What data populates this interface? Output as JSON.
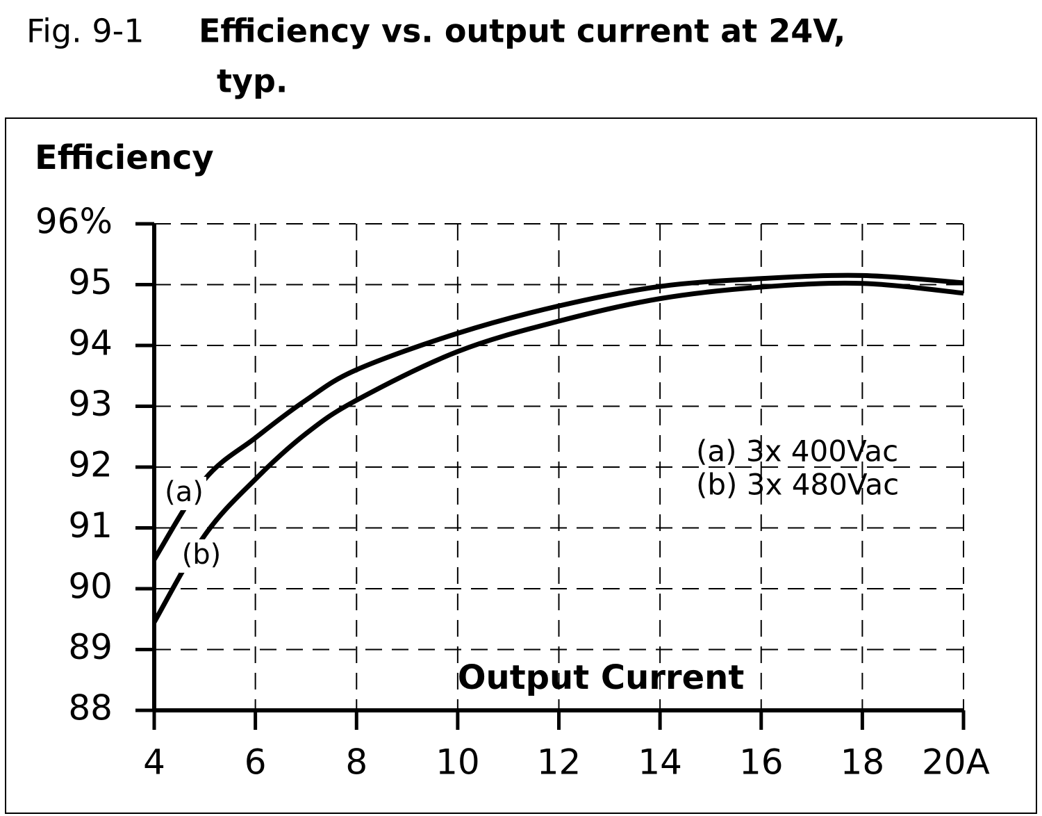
{
  "chart_data": {
    "type": "line",
    "figure_label": "Fig. 9-1",
    "title": "Efficiency vs. output current at 24V,",
    "title_line2": "typ.",
    "y_label": "Efficiency",
    "x_label": "Output Current",
    "x": [
      4,
      5,
      6,
      7,
      8,
      10,
      12,
      14,
      16,
      18,
      20
    ],
    "series": [
      {
        "name": "(a) 3x 400Vac",
        "label": "(a)",
        "color": "#000000",
        "values": [
          90.48,
          91.8,
          92.48,
          93.1,
          93.6,
          94.2,
          94.65,
          94.97,
          95.1,
          95.15,
          95.03
        ]
      },
      {
        "name": "(b) 3x 480Vac",
        "label": "(b)",
        "color": "#000000",
        "values": [
          89.45,
          90.88,
          91.8,
          92.55,
          93.1,
          93.9,
          94.4,
          94.77,
          94.96,
          95.02,
          94.86
        ]
      }
    ],
    "xlim": [
      4,
      20
    ],
    "ylim": [
      88,
      96
    ],
    "xticks": [
      4,
      6,
      8,
      10,
      12,
      14,
      16,
      18,
      {
        "value": 20,
        "label": "20A"
      }
    ],
    "yticks": [
      88,
      89,
      90,
      91,
      92,
      93,
      94,
      95,
      {
        "value": 96,
        "label": "96%"
      }
    ],
    "grid": true
  }
}
